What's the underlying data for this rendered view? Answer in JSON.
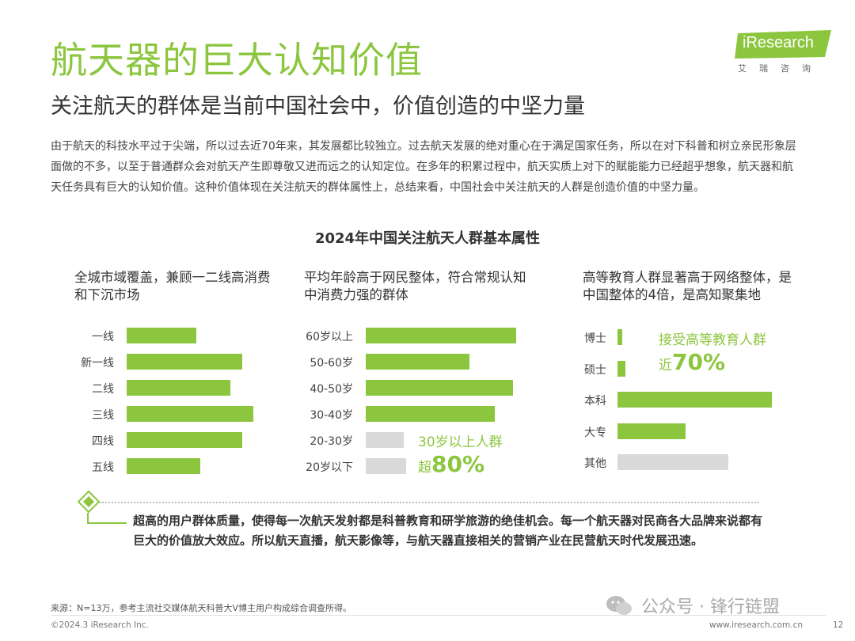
{
  "header": {
    "title": "航天器的巨大认知价值",
    "subtitle": "关注航天的群体是当前中国社会中，价值创造的中坚力量"
  },
  "logo": {
    "brand": "iResearch",
    "sub": "艾瑞咨询",
    "color": "#8cc63f"
  },
  "intro": "由于航天的科技水平过于尖端，所以过去近70年来，其发展都比较独立。过去航天发展的绝对重心在于满足国家任务，所以在对下科普和树立亲民形象层面做的不多，以至于普通群众会对航天产生即尊敬又进而远之的认知定位。在多年的积累过程中，航天实质上对下的赋能能力已经超乎想象，航天器和航天任务具有巨大的认知价值。这种价值体现在关注航天的群体属性上，总结来看，中国社会中关注航天的人群是创造价值的中坚力量。",
  "chart_title": "2024年中国关注航天人群基本属性",
  "chart_data": [
    {
      "type": "bar",
      "title": "全城市域覆盖，兼顾一二线高消费和下沉市场",
      "categories": [
        "一线",
        "新一线",
        "二线",
        "三线",
        "四线",
        "五线"
      ],
      "values": [
        0.55,
        0.91,
        0.82,
        1.0,
        0.91,
        0.58
      ],
      "colors": [
        "#8cc63f",
        "#8cc63f",
        "#8cc63f",
        "#8cc63f",
        "#8cc63f",
        "#8cc63f"
      ]
    },
    {
      "type": "bar",
      "title": "平均年龄高于网民整体，符合常规认知中消费力强的群体",
      "categories": [
        "60岁以上",
        "50-60岁",
        "40-50岁",
        "30-40岁",
        "20-30岁",
        "20岁以下"
      ],
      "values": [
        1.0,
        0.69,
        0.98,
        0.86,
        0.25,
        0.27
      ],
      "colors": [
        "#8cc63f",
        "#8cc63f",
        "#8cc63f",
        "#8cc63f",
        "#d9d9d9",
        "#d9d9d9"
      ],
      "annotation": {
        "line1": "30岁以上人群",
        "prefix": "超",
        "value": "80%"
      }
    },
    {
      "type": "bar",
      "title": "高等教育人群显著高于网络整体，是中国整体的4倍，是高知聚集地",
      "categories": [
        "博士",
        "硕士",
        "本科",
        "大专",
        "其他"
      ],
      "values": [
        0.03,
        0.05,
        1.0,
        0.44,
        0.72
      ],
      "colors": [
        "#8cc63f",
        "#8cc63f",
        "#8cc63f",
        "#8cc63f",
        "#d9d9d9"
      ],
      "annotation": {
        "line1": "接受高等教育人群",
        "prefix": "近",
        "value": "70%"
      }
    }
  ],
  "conclusion": "超高的用户群体质量，使得每一次航天发射都是科普教育和研学旅游的绝佳机会。每一个航天器对民商各大品牌来说都有巨大的价值放大效应。所以航天直播，航天影像等，与航天器直接相关的营销产业在民营航天时代发展迅速。",
  "footer": {
    "source": "来源：N=13万，参考主流社交媒体航天科普大V博主用户构成综合调查所得。",
    "copyright": "©2024.3 iResearch Inc.",
    "website": "www.iresearch.com.cn",
    "page": "12",
    "watermark": "公众号 · 锋行链盟"
  }
}
